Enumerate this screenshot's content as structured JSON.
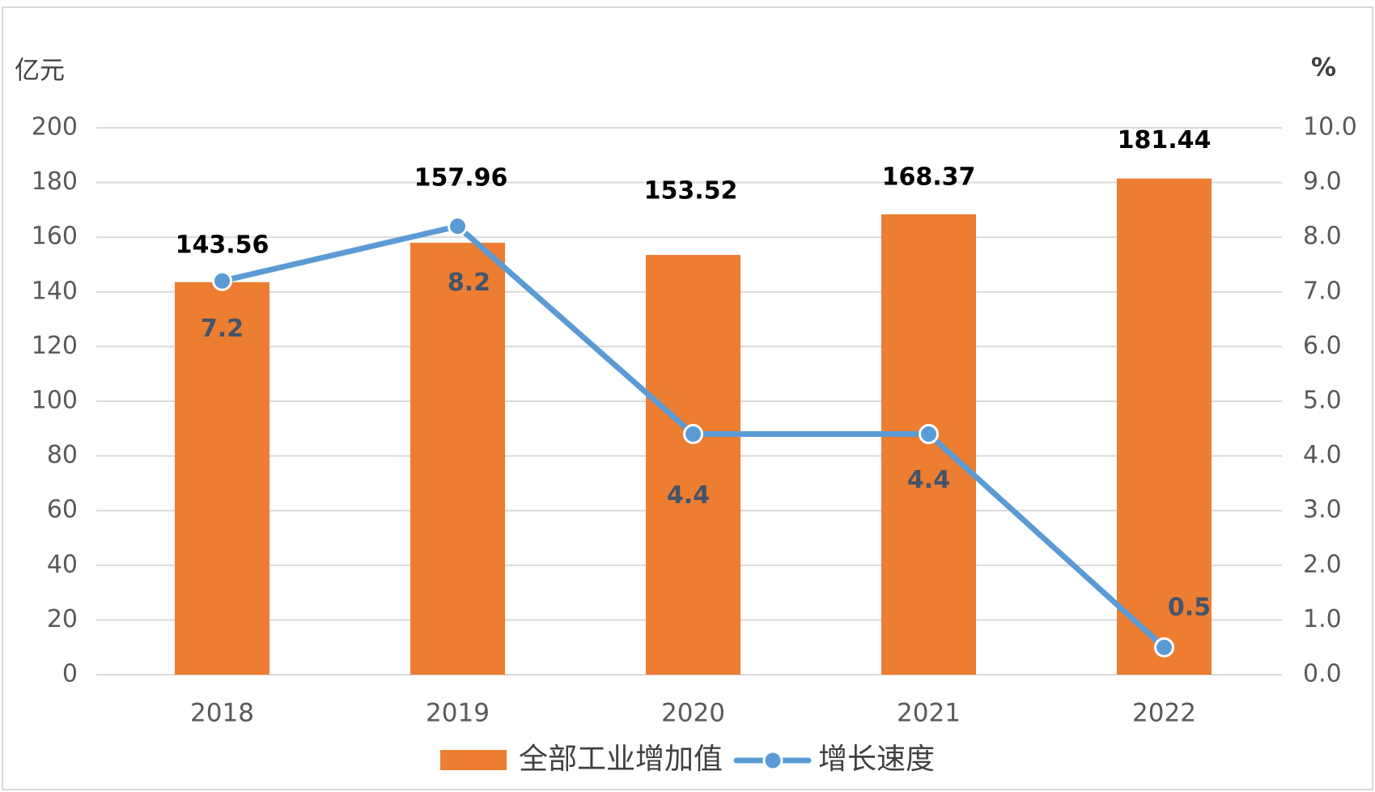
{
  "chart_data": {
    "type": "bar",
    "categories": [
      "2018",
      "2019",
      "2020",
      "2021",
      "2022"
    ],
    "series": [
      {
        "name": "全部工业增加值",
        "type": "bar",
        "axis": "left",
        "values": [
          143.56,
          157.96,
          153.52,
          168.37,
          181.44
        ],
        "labels": [
          "143.56",
          "157.96",
          "153.52",
          "168.37",
          "181.44"
        ],
        "color": "#ED7D31"
      },
      {
        "name": "增长速度",
        "type": "line",
        "axis": "right",
        "values": [
          7.2,
          8.2,
          4.4,
          4.4,
          0.5
        ],
        "labels": [
          "7.2",
          "8.2",
          "4.4",
          "4.4",
          "0.5"
        ],
        "color": "#5B9BD5"
      }
    ],
    "y_left": {
      "unit": "亿元",
      "ylim": [
        0,
        200
      ],
      "ticks": [
        "0",
        "20",
        "40",
        "60",
        "80",
        "100",
        "120",
        "140",
        "160",
        "180",
        "200"
      ]
    },
    "y_right": {
      "unit": "%",
      "ylim": [
        0,
        10
      ],
      "ticks": [
        "0.0",
        "1.0",
        "2.0",
        "3.0",
        "4.0",
        "5.0",
        "6.0",
        "7.0",
        "8.0",
        "9.0",
        "10.0"
      ]
    },
    "grid": true,
    "legend": "bottom"
  },
  "colors": {
    "grid": "#D9D9D9",
    "tick_text": "#595959",
    "line_label": "#44546A"
  }
}
